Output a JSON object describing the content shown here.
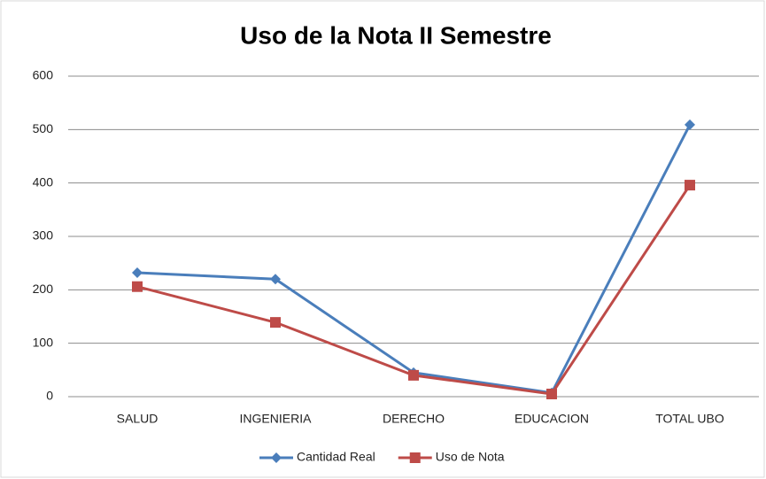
{
  "chart_data": {
    "type": "line",
    "title": "Uso de la Nota II Semestre",
    "categories": [
      "SALUD",
      "INGENIERIA",
      "DERECHO",
      "EDUCACION",
      "TOTAL UBO"
    ],
    "series": [
      {
        "name": "Cantidad Real",
        "color": "#4a7ebb",
        "marker": "diamond",
        "values": [
          232,
          220,
          45,
          7,
          509
        ]
      },
      {
        "name": "Uso de Nota",
        "color": "#be4b48",
        "marker": "square",
        "values": [
          206,
          139,
          40,
          5,
          396
        ]
      }
    ],
    "ylim": [
      0,
      600
    ],
    "yticks": [
      0,
      100,
      200,
      300,
      400,
      500,
      600
    ],
    "grid": true,
    "legend": "bottom"
  }
}
